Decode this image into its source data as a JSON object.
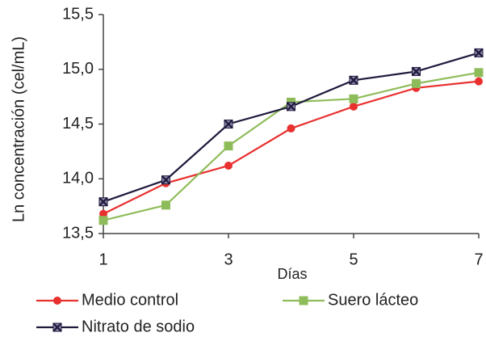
{
  "chart_data": {
    "type": "line",
    "x": [
      1,
      2,
      3,
      4,
      5,
      6,
      7
    ],
    "series": [
      {
        "name": "Medio control",
        "color": "#e8312f",
        "marker": "circle",
        "values": [
          13.68,
          13.96,
          14.12,
          14.46,
          14.66,
          14.83,
          14.89
        ]
      },
      {
        "name": "Suero lácteo",
        "color": "#8fbc5a",
        "marker": "square",
        "values": [
          13.62,
          13.76,
          14.3,
          14.7,
          14.73,
          14.87,
          14.97
        ]
      },
      {
        "name": "Nitrato de sodio",
        "color": "#1f1a3d",
        "marker": "x",
        "values": [
          13.79,
          13.99,
          14.5,
          14.66,
          14.9,
          14.98,
          15.15
        ]
      }
    ],
    "xlabel": "Días",
    "ylabel": "Ln concentración (cel/mL)",
    "xlim": [
      1,
      7
    ],
    "xticks": [
      1,
      3,
      5,
      7
    ],
    "ylim": [
      13.5,
      15.5
    ],
    "yticks": [
      {
        "value": 13.5,
        "label": "13,5"
      },
      {
        "value": 14.0,
        "label": "14,0"
      },
      {
        "value": 14.5,
        "label": "14,5"
      },
      {
        "value": 15.0,
        "label": "15,0"
      },
      {
        "value": 15.5,
        "label": "15,5"
      }
    ],
    "legend": "bottom",
    "grid": false
  }
}
